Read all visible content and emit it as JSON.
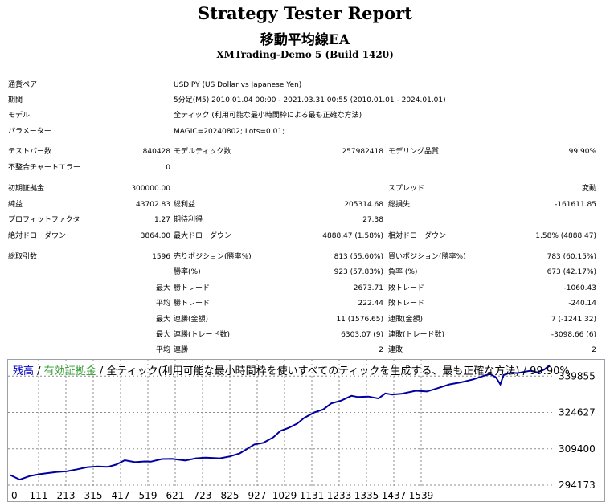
{
  "header": {
    "title": "Strategy Tester Report",
    "ea_name": "移動平均線EA",
    "account": "XMTrading-Demo 5 (Build 1420)"
  },
  "info_rows": [
    {
      "label": "通貨ペア",
      "value": "USDJPY (US Dollar vs Japanese Yen)"
    },
    {
      "label": "期間",
      "value": "5分足(M5) 2010.01.04 00:00 - 2021.03.31 00:55 (2010.01.01 - 2024.01.01)"
    },
    {
      "label": "モデル",
      "value": "全ティック (利用可能な最小時間枠による最も正確な方法)"
    },
    {
      "label": "パラメーター",
      "value": "MAGIC=20240802; Lots=0.01;"
    }
  ],
  "stats_rows": [
    {
      "l1": "テストバー数",
      "v1": "840428",
      "l2": "モデルティック数",
      "v2": "257982418",
      "l3": "モデリング品質",
      "v3": "99.90%"
    },
    {
      "l1": "不整合チャートエラー",
      "v1": "0",
      "l2": "",
      "v2": "",
      "l3": "",
      "v3": ""
    },
    {
      "l1": "初期証拠金",
      "v1": "300000.00",
      "l2": "",
      "v2": "",
      "l3": "スプレッド",
      "v3": "変動"
    },
    {
      "l1": "純益",
      "v1": "43702.83",
      "l2": "総利益",
      "v2": "205314.68",
      "l3": "総損失",
      "v3": "-161611.85"
    },
    {
      "l1": "プロフィットファクタ",
      "v1": "1.27",
      "l2": "期待利得",
      "v2": "27.38",
      "l3": "",
      "v3": ""
    },
    {
      "l1": "絶対ドローダウン",
      "v1": "3864.00",
      "l2": "最大ドローダウン",
      "v2": "4888.47 (1.58%)",
      "l3": "相対ドローダウン",
      "v3": "1.58% (4888.47)"
    },
    {
      "l1": "総取引数",
      "v1": "1596",
      "l2": "売りポジション(勝率%)",
      "v2": "813 (55.60%)",
      "l3": "買いポジション(勝率%)",
      "v3": "783 (60.15%)"
    },
    {
      "l1": "",
      "v1": "",
      "l2": "勝率(%)",
      "v2": "923 (57.83%)",
      "l3": "負率 (%)",
      "v3": "673 (42.17%)"
    },
    {
      "l1": "",
      "v1": "最大",
      "l2": "勝トレード",
      "v2": "2673.71",
      "l3": "敗トレード",
      "v3": "-1060.43"
    },
    {
      "l1": "",
      "v1": "平均",
      "l2": "勝トレード",
      "v2": "222.44",
      "l3": "敗トレード",
      "v3": "-240.14"
    },
    {
      "l1": "",
      "v1": "最大",
      "l2": "連勝(金額)",
      "v2": "11 (1576.65)",
      "l3": "連敗(金額)",
      "v3": "7 (-1241.32)"
    },
    {
      "l1": "",
      "v1": "最大",
      "l2": "連勝(トレード数)",
      "v2": "6303.07 (9)",
      "l3": "連敗(トレード数)",
      "v3": "-3098.66 (6)"
    },
    {
      "l1": "",
      "v1": "平均",
      "l2": "連勝",
      "v2": "2",
      "l3": "連敗",
      "v3": "2"
    }
  ],
  "chart_data": {
    "type": "line",
    "legend": {
      "balance": "残高",
      "sep1": " / ",
      "equity": "有効証拠金",
      "sep2": " / ",
      "model": "全ティック(利用可能な最小時間枠を使いすべてのティックを生成する、最も正確な方法)",
      "sep3": " / ",
      "quality": "99.90%"
    },
    "x_ticks": [
      "0",
      "111",
      "213",
      "315",
      "417",
      "519",
      "621",
      "723",
      "825",
      "927",
      "1029",
      "1131",
      "1233",
      "1335",
      "1437",
      "1539"
    ],
    "y_ticks": [
      "339855",
      "324627",
      "309400",
      "294173"
    ],
    "y_tick_values": [
      339855,
      324627,
      309400,
      294173
    ],
    "xlim": [
      0,
      1596
    ],
    "ylim": [
      294173,
      346000
    ],
    "series": [
      {
        "name": "残高",
        "color": "#0000a0",
        "x": [
          0,
          30,
          60,
          90,
          111,
          140,
          170,
          200,
          230,
          260,
          290,
          315,
          340,
          370,
          400,
          417,
          450,
          480,
          519,
          550,
          580,
          621,
          650,
          680,
          723,
          750,
          780,
          800,
          825,
          850,
          870,
          900,
          927,
          950,
          980,
          1010,
          1029,
          1060,
          1090,
          1110,
          1131,
          1160,
          1200,
          1233,
          1260,
          1300,
          1335,
          1370,
          1400,
          1420,
          1437,
          1450,
          1460,
          1480,
          1500,
          1539,
          1560,
          1580,
          1596
        ],
        "values": [
          298500,
          296500,
          298000,
          298800,
          299200,
          299700,
          300000,
          300800,
          301700,
          302000,
          301800,
          302800,
          304600,
          303800,
          304100,
          304000,
          305100,
          305200,
          304500,
          305400,
          305700,
          305400,
          306200,
          307500,
          311200,
          311900,
          314300,
          316900,
          318200,
          320000,
          322300,
          324600,
          325900,
          328400,
          329600,
          331600,
          331100,
          331300,
          330500,
          332600,
          332100,
          332500,
          333700,
          333400,
          334600,
          336400,
          337300,
          338500,
          339900,
          340700,
          339300,
          336400,
          340300,
          341300,
          341100,
          342100,
          341400,
          342600,
          344500
        ]
      }
    ]
  }
}
